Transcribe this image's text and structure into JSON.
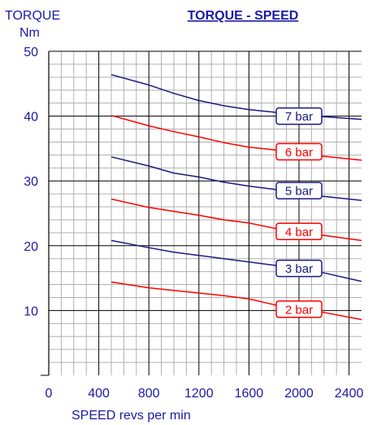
{
  "chart_data": {
    "type": "line",
    "title": "TORQUE - SPEED",
    "ylabel_line1": "TORQUE",
    "ylabel_line2": "Nm",
    "xlabel": "SPEED revs per min",
    "xlim": [
      0,
      2500
    ],
    "ylim": [
      0,
      50
    ],
    "x_ticks": [
      0,
      400,
      800,
      1200,
      1600,
      2000,
      2400
    ],
    "y_ticks": [
      10,
      20,
      30,
      40,
      50
    ],
    "grid": true,
    "colors": {
      "text": "#1a1aa6",
      "grid_major": "#000000",
      "grid_minor": "#b0b0b0",
      "series_blue": "#1a1a80",
      "series_red": "#ff0000"
    },
    "series": [
      {
        "name": "7 bar",
        "color": "#1a1a80",
        "points": [
          [
            500,
            46.4
          ],
          [
            800,
            44.8
          ],
          [
            1000,
            43.5
          ],
          [
            1200,
            42.4
          ],
          [
            1400,
            41.6
          ],
          [
            1600,
            41.0
          ],
          [
            1800,
            40.6
          ],
          [
            2000,
            40.2
          ],
          [
            2200,
            39.9
          ],
          [
            2500,
            39.5
          ]
        ]
      },
      {
        "name": "6 bar",
        "color": "#ff0000",
        "points": [
          [
            500,
            40.1
          ],
          [
            800,
            38.5
          ],
          [
            1000,
            37.6
          ],
          [
            1200,
            36.8
          ],
          [
            1400,
            35.9
          ],
          [
            1600,
            35.2
          ],
          [
            1800,
            34.8
          ],
          [
            2000,
            34.3
          ],
          [
            2200,
            33.8
          ],
          [
            2500,
            33.2
          ]
        ]
      },
      {
        "name": "5 bar",
        "color": "#1a1a80",
        "points": [
          [
            500,
            33.7
          ],
          [
            800,
            32.3
          ],
          [
            1000,
            31.2
          ],
          [
            1200,
            30.6
          ],
          [
            1400,
            29.8
          ],
          [
            1600,
            29.2
          ],
          [
            1800,
            28.7
          ],
          [
            2000,
            28.1
          ],
          [
            2200,
            27.6
          ],
          [
            2500,
            27.0
          ]
        ]
      },
      {
        "name": "4 bar",
        "color": "#ff0000",
        "points": [
          [
            500,
            27.2
          ],
          [
            800,
            25.9
          ],
          [
            1000,
            25.3
          ],
          [
            1200,
            24.7
          ],
          [
            1400,
            24.0
          ],
          [
            1600,
            23.5
          ],
          [
            1800,
            22.7
          ],
          [
            2000,
            22.1
          ],
          [
            2200,
            21.6
          ],
          [
            2500,
            20.8
          ]
        ]
      },
      {
        "name": "3 bar",
        "color": "#1a1a80",
        "points": [
          [
            500,
            20.8
          ],
          [
            800,
            19.7
          ],
          [
            1000,
            19.0
          ],
          [
            1200,
            18.5
          ],
          [
            1400,
            18.0
          ],
          [
            1600,
            17.5
          ],
          [
            1800,
            17.0
          ],
          [
            2000,
            16.6
          ],
          [
            2200,
            15.8
          ],
          [
            2500,
            14.5
          ]
        ]
      },
      {
        "name": "2 bar",
        "color": "#ff0000",
        "points": [
          [
            500,
            14.4
          ],
          [
            800,
            13.5
          ],
          [
            1000,
            13.1
          ],
          [
            1200,
            12.7
          ],
          [
            1400,
            12.3
          ],
          [
            1600,
            11.8
          ],
          [
            1800,
            10.9
          ],
          [
            2000,
            10.2
          ],
          [
            2200,
            9.7
          ],
          [
            2500,
            8.6
          ]
        ]
      }
    ],
    "labels": [
      {
        "series": "7 bar",
        "x": 2000,
        "y": 40
      },
      {
        "series": "6 bar",
        "x": 2000,
        "y": 34.5
      },
      {
        "series": "5 bar",
        "x": 2000,
        "y": 28.5
      },
      {
        "series": "4 bar",
        "x": 2000,
        "y": 22.2
      },
      {
        "series": "3 bar",
        "x": 2000,
        "y": 16.5
      },
      {
        "series": "2 bar",
        "x": 2000,
        "y": 10.2
      }
    ]
  }
}
